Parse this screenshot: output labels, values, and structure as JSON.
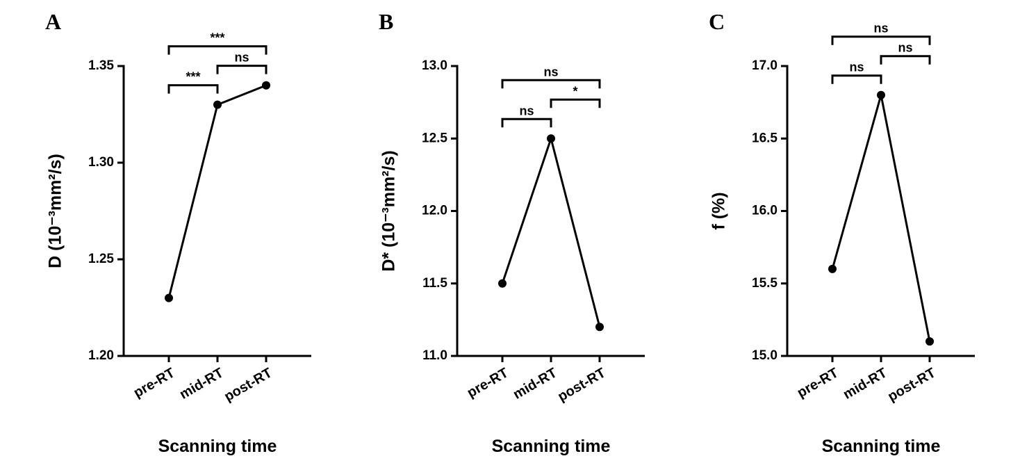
{
  "chart_data": [
    {
      "type": "line",
      "panel_label": "A",
      "y_label": "D (10⁻³mm²/s)",
      "x_label": "Scanning time",
      "categories": [
        "pre-RT",
        "mid-RT",
        "post-RT"
      ],
      "values": [
        1.23,
        1.33,
        1.34
      ],
      "color": "#000000",
      "ylim": [
        1.2,
        1.35
      ],
      "yticks": [
        {
          "value": 1.2,
          "label": "1.20"
        },
        1.25,
        {
          "value": 1.3,
          "label": "1.30"
        },
        1.35
      ],
      "comparisons": [
        {
          "from": 0,
          "to": 1,
          "label": "***"
        },
        {
          "from": 1,
          "to": 2,
          "label": "ns"
        },
        {
          "from": 0,
          "to": 2,
          "label": "***"
        }
      ]
    },
    {
      "type": "line",
      "panel_label": "B",
      "y_label": "D* (10⁻³mm²/s)",
      "x_label": "Scanning time",
      "categories": [
        "pre-RT",
        "mid-RT",
        "post-RT"
      ],
      "values": [
        11.5,
        12.5,
        11.2
      ],
      "color": "#000000",
      "ylim": [
        11,
        13
      ],
      "yticks": [
        {
          "value": 11,
          "label": "11.0"
        },
        11.5,
        {
          "value": 12,
          "label": "12.0"
        },
        12.5,
        {
          "value": 13,
          "label": "13.0"
        }
      ],
      "comparisons": [
        {
          "from": 0,
          "to": 1,
          "label": "ns"
        },
        {
          "from": 1,
          "to": 2,
          "label": "*"
        },
        {
          "from": 0,
          "to": 2,
          "label": "ns"
        }
      ]
    },
    {
      "type": "line",
      "panel_label": "C",
      "y_label": "f (%)",
      "x_label": "Scanning time",
      "categories": [
        "pre-RT",
        "mid-RT",
        "post-RT"
      ],
      "values": [
        15.6,
        16.8,
        15.1
      ],
      "color": "#000000",
      "ylim": [
        15,
        17
      ],
      "yticks": [
        {
          "value": 15,
          "label": "15.0"
        },
        15.5,
        {
          "value": 16,
          "label": "16.0"
        },
        16.5,
        {
          "value": 17,
          "label": "17.0"
        }
      ],
      "comparisons": [
        {
          "from": 0,
          "to": 1,
          "label": "ns"
        },
        {
          "from": 1,
          "to": 2,
          "label": "ns"
        },
        {
          "from": 0,
          "to": 2,
          "label": "ns"
        }
      ]
    }
  ]
}
